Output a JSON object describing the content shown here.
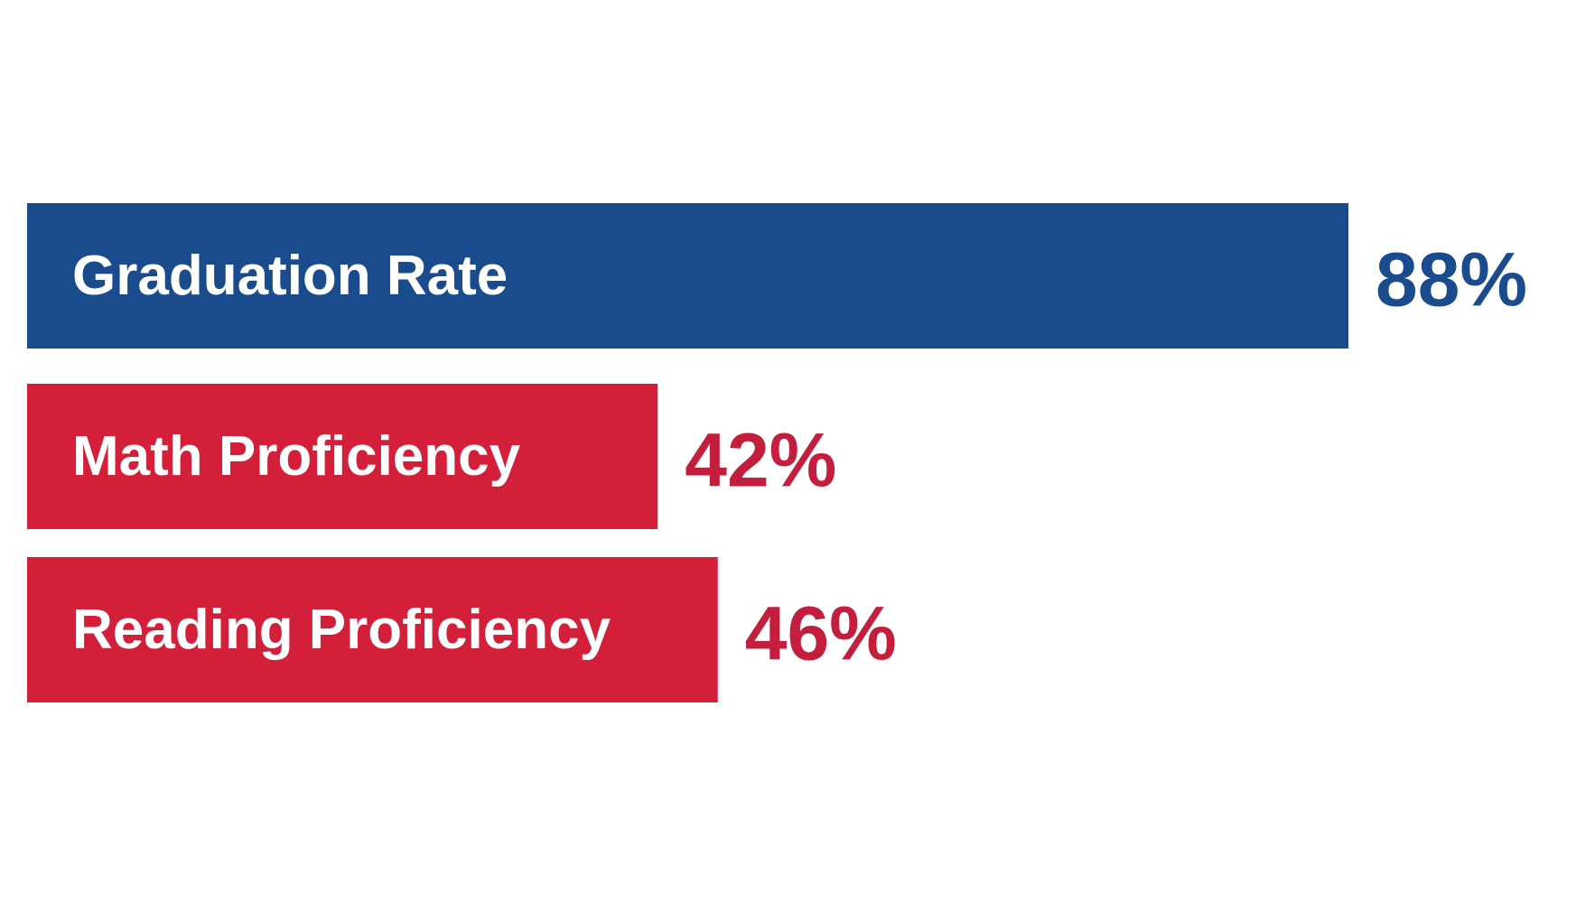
{
  "chart_data": {
    "type": "bar",
    "orientation": "horizontal",
    "categories": [
      "Graduation Rate",
      "Math Proficiency",
      "Reading Proficiency"
    ],
    "values": [
      88,
      42,
      46
    ],
    "value_labels": [
      "88%",
      "42%",
      "46%"
    ],
    "colors": [
      "#1a4b8c",
      "#d41f3a",
      "#d41f3a"
    ],
    "label_colors": [
      "#1a4b8c",
      "#c41e3f",
      "#c41e3f"
    ]
  }
}
